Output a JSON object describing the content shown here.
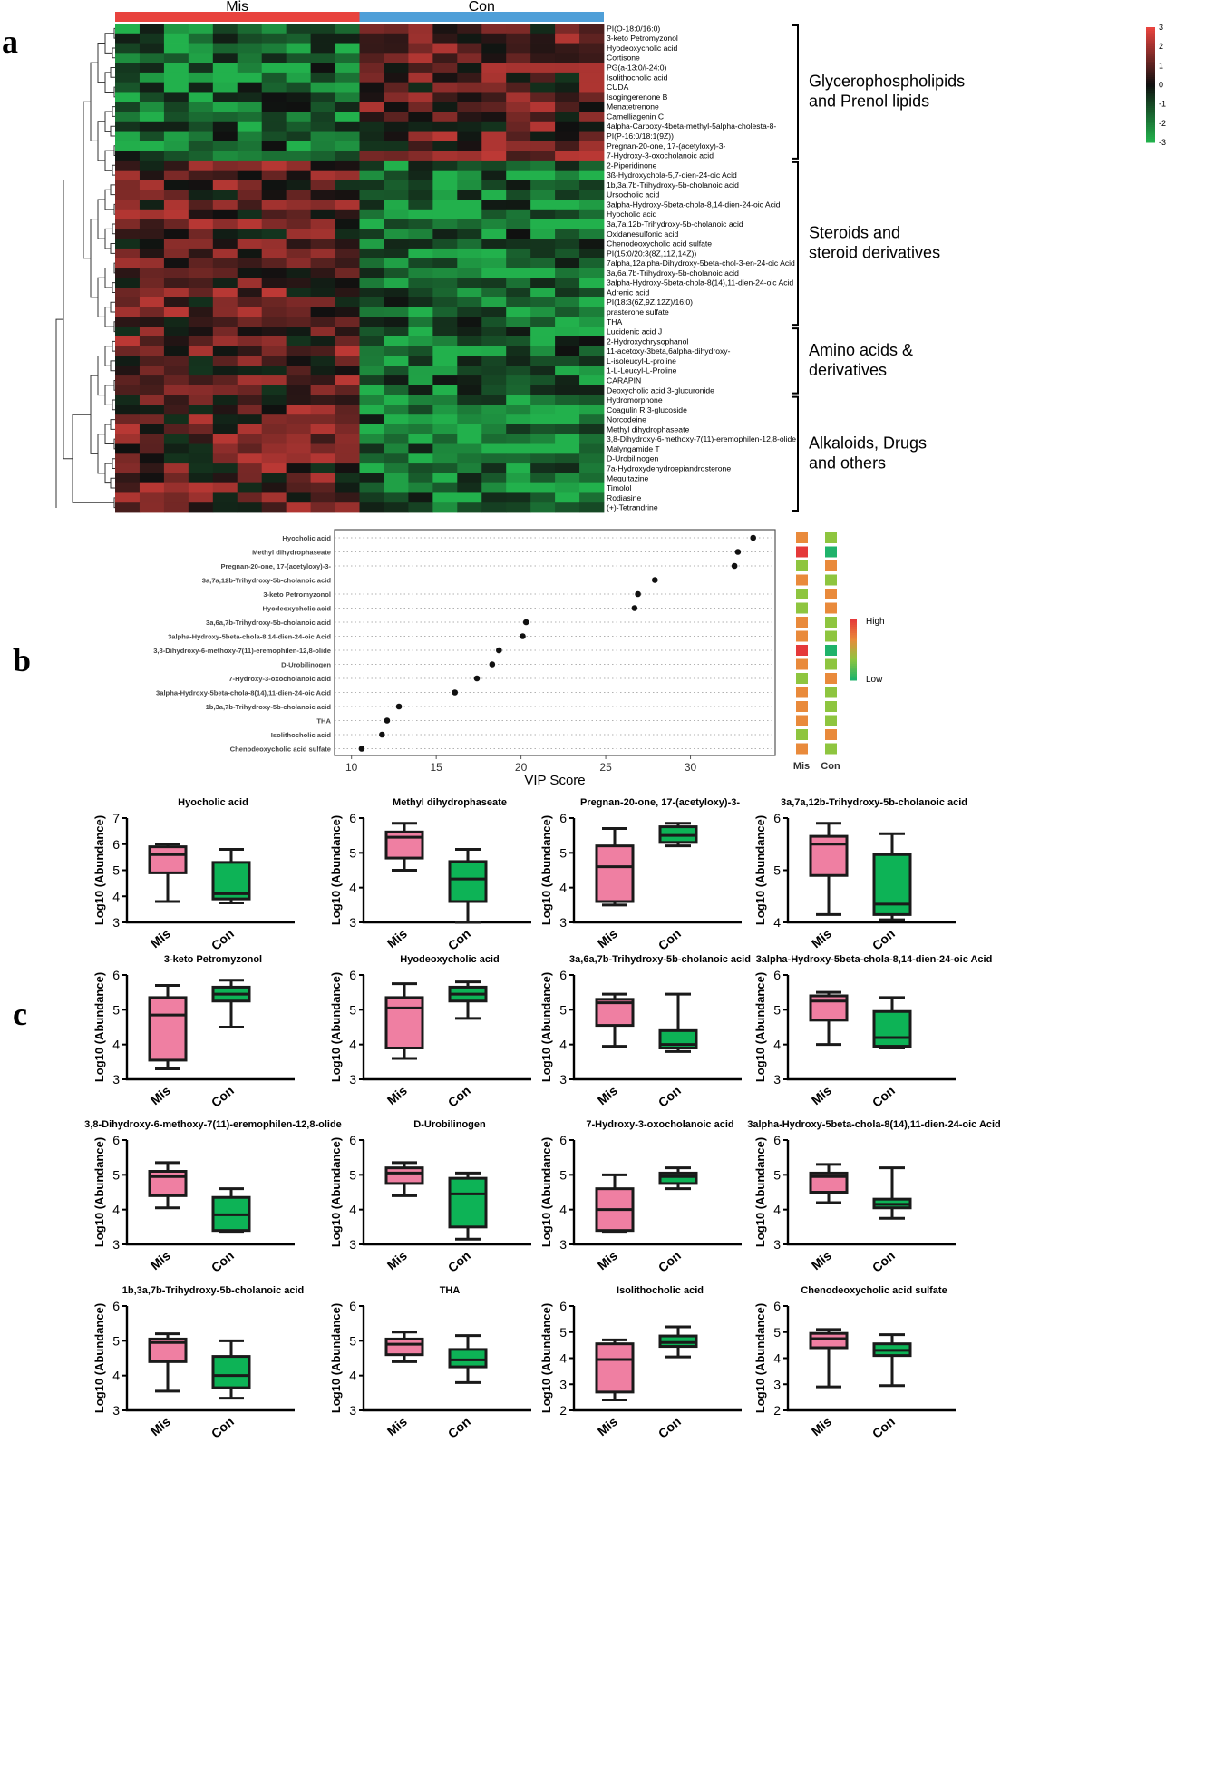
{
  "panels": {
    "a": "a",
    "b": "b",
    "c": "c"
  },
  "chart_data": [
    {
      "type": "heatmap",
      "id": "heatmap",
      "groups": [
        "Mis",
        "Con"
      ],
      "group_colors": [
        "#e8433e",
        "#4f9fd8"
      ],
      "color_scale": {
        "low": "#22b14c",
        "mid": "#101010",
        "high": "#e8433e",
        "ticks": [
          3,
          2,
          1,
          0,
          -1,
          -2,
          -3
        ]
      },
      "columns_per_group": 10,
      "rows": [
        "PI(O-18:0/16:0)",
        "3-keto Petromyzonol",
        "Hyodeoxycholic acid",
        "Cortisone",
        "PG(a-13:0/i-24:0)",
        "Isolithocholic acid",
        "CUDA",
        "Isogingerenone B",
        "Menatetrenone",
        "Camelliagenin C",
        "4alpha-Carboxy-4beta-methyl-5alpha-cholesta-8-",
        "PI(P-16:0/18:1(9Z))",
        "Pregnan-20-one, 17-(acetyloxy)-3-",
        "7-Hydroxy-3-oxocholanoic acid",
        "2-Piperidinone",
        "3ß-Hydroxychola-5,7-dien-24-oic Acid",
        "1b,3a,7b-Trihydroxy-5b-cholanoic acid",
        "Ursocholic acid",
        "3alpha-Hydroxy-5beta-chola-8,14-dien-24-oic Acid",
        "Hyocholic acid",
        "3a,7a,12b-Trihydroxy-5b-cholanoic acid",
        "Oxidanesulfonic acid",
        "Chenodeoxycholic acid sulfate",
        "PI(15:0/20:3(8Z,11Z,14Z))",
        "7alpha,12alpha-Dihydroxy-5beta-chol-3-en-24-oic Acid",
        "3a,6a,7b-Trihydroxy-5b-cholanoic acid",
        "3alpha-Hydroxy-5beta-chola-8(14),11-dien-24-oic Acid",
        "Adrenic acid",
        "PI(18:3(6Z,9Z,12Z)/16:0)",
        "prasterone sulfate",
        "THA",
        "Lucidenic acid J",
        "2-Hydroxychrysophanol",
        "11-acetoxy-3beta,6alpha-dihydroxy-",
        "L-isoleucyl-L-proline",
        "1-L-Leucyl-L-Proline",
        "CARAPIN",
        "Deoxycholic acid 3-glucuronide",
        "Hydromorphone",
        "Coagulin R 3-glucoside",
        "Norcodeine",
        "Methyl dihydrophaseate",
        "3,8-Dihydroxy-6-methoxy-7(11)-eremophilen-12,8-olide",
        "Malyngamide T",
        "D-Urobilinogen",
        "7a-Hydroxydehydroepiandrosterone",
        "Mequitazine",
        "Timolol",
        "Rodiasine",
        "(+)-Tetrandrine"
      ],
      "row_groups": [
        {
          "label": [
            "Glycerophospholipids",
            "and Prenol lipids"
          ],
          "first_row": 0,
          "last_row": 13
        },
        {
          "label": [
            "Steroids and",
            "steroid derivatives"
          ],
          "first_row": 14,
          "last_row": 30
        },
        {
          "label": [
            "Amino acids &",
            "derivatives"
          ],
          "first_row": 31,
          "last_row": 37
        },
        {
          "label": [
            "Alkaloids, Drugs",
            "and others"
          ],
          "first_row": 38,
          "last_row": 49
        }
      ]
    },
    {
      "type": "scatter",
      "id": "vip",
      "title": "",
      "xlabel": "VIP Score",
      "xlim": [
        9,
        35
      ],
      "xticks": [
        10,
        15,
        20,
        25,
        30
      ],
      "items": [
        {
          "name": "Hyocholic acid",
          "vip": 33.7,
          "mis": "#e98a3b",
          "con": "#8ec53f"
        },
        {
          "name": "Methyl dihydrophaseate",
          "vip": 32.8,
          "mis": "#e5393a",
          "con": "#1fb36b"
        },
        {
          "name": "Pregnan-20-one, 17-(acetyloxy)-3-",
          "vip": 32.6,
          "mis": "#8ec53f",
          "con": "#e98a3b"
        },
        {
          "name": "3a,7a,12b-Trihydroxy-5b-cholanoic acid",
          "vip": 27.9,
          "mis": "#e98a3b",
          "con": "#8ec53f"
        },
        {
          "name": "3-keto Petromyzonol",
          "vip": 26.9,
          "mis": "#8ec53f",
          "con": "#e98a3b"
        },
        {
          "name": "Hyodeoxycholic acid",
          "vip": 26.7,
          "mis": "#8ec53f",
          "con": "#e98a3b"
        },
        {
          "name": "3a,6a,7b-Trihydroxy-5b-cholanoic acid",
          "vip": 20.3,
          "mis": "#e98a3b",
          "con": "#8ec53f"
        },
        {
          "name": "3alpha-Hydroxy-5beta-chola-8,14-dien-24-oic Acid",
          "vip": 20.1,
          "mis": "#e98a3b",
          "con": "#8ec53f"
        },
        {
          "name": "3,8-Dihydroxy-6-methoxy-7(11)-eremophilen-12,8-olide",
          "vip": 18.7,
          "mis": "#e5393a",
          "con": "#1fb36b"
        },
        {
          "name": "D-Urobilinogen",
          "vip": 18.3,
          "mis": "#e98a3b",
          "con": "#8ec53f"
        },
        {
          "name": "7-Hydroxy-3-oxocholanoic acid",
          "vip": 17.4,
          "mis": "#8ec53f",
          "con": "#e98a3b"
        },
        {
          "name": "3alpha-Hydroxy-5beta-chola-8(14),11-dien-24-oic Acid",
          "vip": 16.1,
          "mis": "#e98a3b",
          "con": "#8ec53f"
        },
        {
          "name": "1b,3a,7b-Trihydroxy-5b-cholanoic acid",
          "vip": 12.8,
          "mis": "#e98a3b",
          "con": "#8ec53f"
        },
        {
          "name": "THA",
          "vip": 12.1,
          "mis": "#e98a3b",
          "con": "#8ec53f"
        },
        {
          "name": "Isolithocholic acid",
          "vip": 11.8,
          "mis": "#8ec53f",
          "con": "#e98a3b"
        },
        {
          "name": "Chenodeoxycholic acid sulfate",
          "vip": 10.6,
          "mis": "#e98a3b",
          "con": "#8ec53f"
        }
      ],
      "heat_columns": [
        "Mis",
        "Con"
      ],
      "legend": {
        "high": "High",
        "low": "Low"
      }
    },
    {
      "type": "boxplot",
      "id": "boxes",
      "ylabel": "Log10 (Abundance)",
      "categories": [
        "Mis",
        "Con"
      ],
      "colors": {
        "Mis": "#ef7fa2",
        "Con": "#0db356"
      },
      "plots": [
        {
          "title": "Hyocholic acid",
          "ylim": [
            3,
            7
          ],
          "yticks": [
            3,
            4,
            5,
            6,
            7
          ],
          "Mis": {
            "min": 3.8,
            "q1": 4.9,
            "median": 5.6,
            "q3": 5.9,
            "max": 6.0
          },
          "Con": {
            "min": 3.75,
            "q1": 3.9,
            "median": 4.1,
            "q3": 5.3,
            "max": 5.8
          }
        },
        {
          "title": "Methyl dihydrophaseate",
          "ylim": [
            3,
            6
          ],
          "yticks": [
            3,
            4,
            5,
            6
          ],
          "Mis": {
            "min": 4.5,
            "q1": 4.85,
            "median": 5.45,
            "q3": 5.6,
            "max": 5.85
          },
          "Con": {
            "min": 3.0,
            "q1": 3.6,
            "median": 4.25,
            "q3": 4.75,
            "max": 5.1
          }
        },
        {
          "title": "Pregnan-20-one, 17-(acetyloxy)-3-",
          "ylim": [
            3,
            6
          ],
          "yticks": [
            3,
            4,
            5,
            6
          ],
          "Mis": {
            "min": 3.5,
            "q1": 3.6,
            "median": 4.6,
            "q3": 5.2,
            "max": 5.7
          },
          "Con": {
            "min": 5.2,
            "q1": 5.3,
            "median": 5.5,
            "q3": 5.75,
            "max": 5.85
          }
        },
        {
          "title": "3a,7a,12b-Trihydroxy-5b-cholanoic acid",
          "ylim": [
            4,
            6
          ],
          "yticks": [
            4,
            5,
            6
          ],
          "Mis": {
            "min": 4.15,
            "q1": 4.9,
            "median": 5.5,
            "q3": 5.65,
            "max": 5.9
          },
          "Con": {
            "min": 4.05,
            "q1": 4.15,
            "median": 4.35,
            "q3": 5.3,
            "max": 5.7
          }
        },
        {
          "title": "3-keto Petromyzonol",
          "ylim": [
            3,
            6
          ],
          "yticks": [
            3,
            4,
            5,
            6
          ],
          "Mis": {
            "min": 3.3,
            "q1": 3.55,
            "median": 4.85,
            "q3": 5.35,
            "max": 5.7
          },
          "Con": {
            "min": 4.5,
            "q1": 5.25,
            "median": 5.45,
            "q3": 5.65,
            "max": 5.85
          }
        },
        {
          "title": "Hyodeoxycholic acid",
          "ylim": [
            3,
            6
          ],
          "yticks": [
            3,
            4,
            5,
            6
          ],
          "Mis": {
            "min": 3.6,
            "q1": 3.9,
            "median": 5.05,
            "q3": 5.35,
            "max": 5.75
          },
          "Con": {
            "min": 4.75,
            "q1": 5.25,
            "median": 5.45,
            "q3": 5.65,
            "max": 5.8
          }
        },
        {
          "title": "3a,6a,7b-Trihydroxy-5b-cholanoic acid",
          "ylim": [
            3,
            6
          ],
          "yticks": [
            3,
            4,
            5,
            6
          ],
          "Mis": {
            "min": 3.95,
            "q1": 4.55,
            "median": 5.2,
            "q3": 5.3,
            "max": 5.45
          },
          "Con": {
            "min": 3.8,
            "q1": 3.9,
            "median": 4.0,
            "q3": 4.4,
            "max": 5.45
          }
        },
        {
          "title": "3alpha-Hydroxy-5beta-chola-8,14-dien-24-oic Acid",
          "ylim": [
            3,
            6
          ],
          "yticks": [
            3,
            4,
            5,
            6
          ],
          "Mis": {
            "min": 4.0,
            "q1": 4.7,
            "median": 5.25,
            "q3": 5.4,
            "max": 5.5
          },
          "Con": {
            "min": 3.9,
            "q1": 3.95,
            "median": 4.2,
            "q3": 4.95,
            "max": 5.35
          }
        },
        {
          "title": "3,8-Dihydroxy-6-methoxy-7(11)-eremophilen-12,8-olide",
          "ylim": [
            3,
            6
          ],
          "yticks": [
            3,
            4,
            5,
            6
          ],
          "Mis": {
            "min": 4.05,
            "q1": 4.4,
            "median": 4.95,
            "q3": 5.1,
            "max": 5.35
          },
          "Con": {
            "min": 3.35,
            "q1": 3.4,
            "median": 3.85,
            "q3": 4.35,
            "max": 4.6
          }
        },
        {
          "title": "D-Urobilinogen",
          "ylim": [
            3,
            6
          ],
          "yticks": [
            3,
            4,
            5,
            6
          ],
          "Mis": {
            "min": 4.4,
            "q1": 4.75,
            "median": 5.05,
            "q3": 5.2,
            "max": 5.35
          },
          "Con": {
            "min": 3.15,
            "q1": 3.5,
            "median": 4.45,
            "q3": 4.9,
            "max": 5.05
          }
        },
        {
          "title": "7-Hydroxy-3-oxocholanoic acid",
          "ylim": [
            3,
            6
          ],
          "yticks": [
            3,
            4,
            5,
            6
          ],
          "Mis": {
            "min": 3.35,
            "q1": 3.4,
            "median": 4.0,
            "q3": 4.6,
            "max": 5.0
          },
          "Con": {
            "min": 4.6,
            "q1": 4.75,
            "median": 4.95,
            "q3": 5.05,
            "max": 5.2
          }
        },
        {
          "title": "3alpha-Hydroxy-5beta-chola-8(14),11-dien-24-oic Acid",
          "ylim": [
            3,
            6
          ],
          "yticks": [
            3,
            4,
            5,
            6
          ],
          "Mis": {
            "min": 4.2,
            "q1": 4.5,
            "median": 4.95,
            "q3": 5.05,
            "max": 5.3
          },
          "Con": {
            "min": 3.75,
            "q1": 4.05,
            "median": 4.15,
            "q3": 4.3,
            "max": 5.2
          }
        },
        {
          "title": "1b,3a,7b-Trihydroxy-5b-cholanoic acid",
          "ylim": [
            3,
            6
          ],
          "yticks": [
            3,
            4,
            5,
            6
          ],
          "Mis": {
            "min": 3.55,
            "q1": 4.4,
            "median": 4.95,
            "q3": 5.05,
            "max": 5.2
          },
          "Con": {
            "min": 3.35,
            "q1": 3.65,
            "median": 4.0,
            "q3": 4.55,
            "max": 5.0
          }
        },
        {
          "title": "THA",
          "ylim": [
            3,
            6
          ],
          "yticks": [
            3,
            4,
            5,
            6
          ],
          "Mis": {
            "min": 4.4,
            "q1": 4.6,
            "median": 4.9,
            "q3": 5.05,
            "max": 5.25
          },
          "Con": {
            "min": 3.8,
            "q1": 4.25,
            "median": 4.45,
            "q3": 4.75,
            "max": 5.15
          }
        },
        {
          "title": "Isolithocholic acid",
          "ylim": [
            2,
            6
          ],
          "yticks": [
            2,
            3,
            4,
            5,
            6
          ],
          "Mis": {
            "min": 2.4,
            "q1": 2.7,
            "median": 3.95,
            "q3": 4.55,
            "max": 4.7
          },
          "Con": {
            "min": 4.05,
            "q1": 4.45,
            "median": 4.6,
            "q3": 4.85,
            "max": 5.2
          }
        },
        {
          "title": "Chenodeoxycholic acid sulfate",
          "ylim": [
            2,
            6
          ],
          "yticks": [
            2,
            3,
            4,
            5,
            6
          ],
          "Mis": {
            "min": 2.9,
            "q1": 4.4,
            "median": 4.75,
            "q3": 4.95,
            "max": 5.1
          },
          "Con": {
            "min": 2.95,
            "q1": 4.1,
            "median": 4.3,
            "q3": 4.55,
            "max": 4.9
          }
        }
      ]
    }
  ]
}
